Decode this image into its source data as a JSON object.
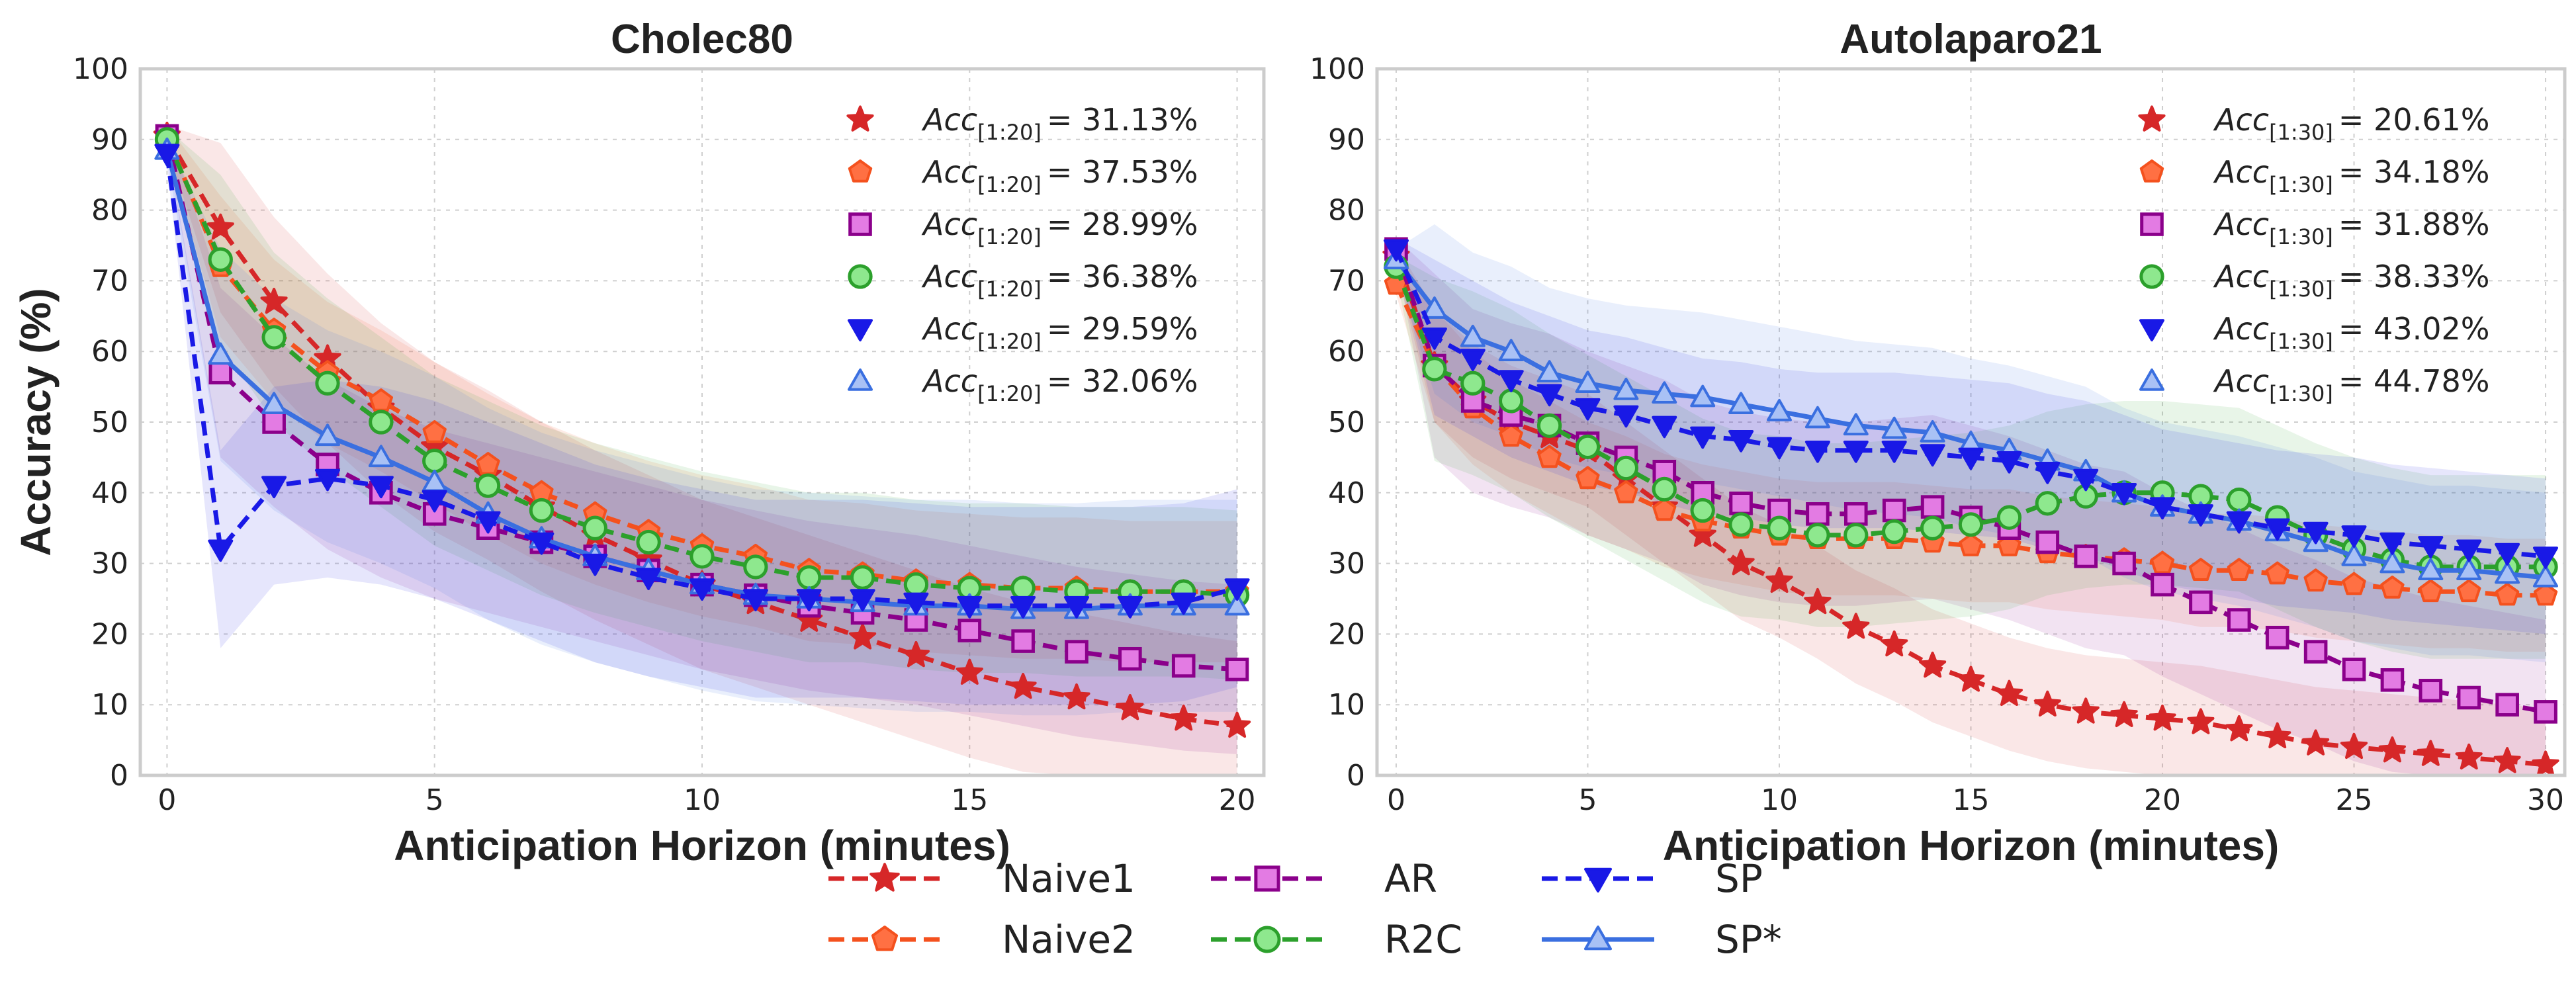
{
  "legend_order": [
    "Naive1",
    "AR",
    "SP",
    "Naive2",
    "R2C",
    "SP*"
  ],
  "style": {
    "Naive1": {
      "color": "#d62728",
      "fill": "#d62728",
      "marker": "star",
      "dash": true
    },
    "Naive2": {
      "color": "#f4511e",
      "fill": "#ff7043",
      "marker": "pentagon",
      "dash": true
    },
    "AR": {
      "color": "#8b008b",
      "fill": "#e37be3",
      "marker": "square",
      "dash": true
    },
    "R2C": {
      "color": "#2ca02c",
      "fill": "#8ee88e",
      "marker": "circle",
      "dash": true
    },
    "SP": {
      "color": "#1919e6",
      "fill": "#1919e6",
      "marker": "tri-down",
      "dash": true
    },
    "SP*": {
      "color": "#3a6fe0",
      "fill": "#a9c1f5",
      "marker": "tri-up",
      "dash": false
    }
  },
  "chart_data": [
    {
      "type": "line",
      "title": "Cholec80",
      "xlabel": "Anticipation Horizon (minutes)",
      "ylabel": "Accuracy (%)",
      "xlim": [
        -0.5,
        20.5
      ],
      "ylim": [
        0,
        100
      ],
      "xticks": [
        0,
        5,
        10,
        15,
        20
      ],
      "yticks": [
        0,
        10,
        20,
        30,
        40,
        50,
        60,
        70,
        80,
        90,
        100
      ],
      "x": [
        0,
        1,
        2,
        3,
        4,
        5,
        6,
        7,
        8,
        9,
        10,
        11,
        12,
        13,
        14,
        15,
        16,
        17,
        18,
        19,
        20
      ],
      "annotations": [
        {
          "series": "Naive1",
          "label": "Acc",
          "sub": "[1:20]",
          "value": "= 31.13%"
        },
        {
          "series": "Naive2",
          "label": "Acc",
          "sub": "[1:20]",
          "value": "= 37.53%"
        },
        {
          "series": "AR",
          "label": "Acc",
          "sub": "[1:20]",
          "value": "= 28.99%"
        },
        {
          "series": "R2C",
          "label": "Acc",
          "sub": "[1:20]",
          "value": "= 36.38%"
        },
        {
          "series": "SP",
          "label": "Acc",
          "sub": "[1:20]",
          "value": "= 29.59%"
        },
        {
          "series": "SP*",
          "label": "Acc",
          "sub": "[1:20]",
          "value": "= 32.06%"
        }
      ],
      "series": [
        {
          "name": "Naive1",
          "values": [
            90.5,
            77.5,
            67,
            59,
            52,
            46.5,
            42.5,
            38,
            34,
            30.5,
            27,
            24.5,
            22,
            19.5,
            17,
            14.5,
            12.5,
            11,
            9.5,
            8,
            7
          ],
          "band": 12
        },
        {
          "name": "Naive2",
          "values": [
            90.5,
            72,
            63,
            57,
            53,
            48.5,
            44,
            40,
            37,
            34.5,
            32.5,
            31,
            29,
            28.5,
            27.5,
            27,
            26.5,
            26.5,
            26,
            26,
            26
          ],
          "band": 10
        },
        {
          "name": "AR",
          "values": [
            90.5,
            57,
            50,
            44,
            40,
            37,
            35,
            33,
            31,
            29,
            27,
            25.5,
            24,
            23,
            22,
            20.5,
            19,
            17.5,
            16.5,
            15.5,
            15
          ],
          "band": 12
        },
        {
          "name": "R2C",
          "values": [
            90,
            73,
            62,
            55.5,
            50,
            44.5,
            41,
            37.5,
            35,
            33,
            31,
            29.5,
            28,
            28,
            27,
            26.5,
            26.5,
            26,
            26,
            26,
            25.5
          ],
          "band": 12
        },
        {
          "name": "SP",
          "values": [
            88,
            32,
            41,
            42,
            41,
            39,
            36,
            33,
            30,
            28,
            26.5,
            25,
            25,
            25,
            24.5,
            24,
            24,
            24,
            24,
            24.5,
            26.5
          ],
          "band": 14
        },
        {
          "name": "SP*",
          "values": [
            88.5,
            59.5,
            52.5,
            48,
            45,
            41.5,
            37,
            33.5,
            31,
            29,
            27,
            25.5,
            25,
            24.5,
            24,
            24,
            23.5,
            23.5,
            24,
            24,
            24
          ],
          "band": 15
        }
      ]
    },
    {
      "type": "line",
      "title": "Autolaparo21",
      "xlabel": "Anticipation Horizon (minutes)",
      "ylabel": "",
      "xlim": [
        -0.5,
        30.5
      ],
      "ylim": [
        0,
        100
      ],
      "xticks": [
        0,
        5,
        10,
        15,
        20,
        25,
        30
      ],
      "yticks": [
        0,
        10,
        20,
        30,
        40,
        50,
        60,
        70,
        80,
        90,
        100
      ],
      "x": [
        0,
        1,
        2,
        3,
        4,
        5,
        6,
        7,
        8,
        9,
        10,
        11,
        12,
        13,
        14,
        15,
        16,
        17,
        18,
        19,
        20,
        21,
        22,
        23,
        24,
        25,
        26,
        27,
        28,
        29,
        30
      ],
      "annotations": [
        {
          "series": "Naive1",
          "label": "Acc",
          "sub": "[1:30]",
          "value": "= 20.61%"
        },
        {
          "series": "Naive2",
          "label": "Acc",
          "sub": "[1:30]",
          "value": "= 34.18%"
        },
        {
          "series": "AR",
          "label": "Acc",
          "sub": "[1:30]",
          "value": "= 31.88%"
        },
        {
          "series": "R2C",
          "label": "Acc",
          "sub": "[1:30]",
          "value": "= 38.33%"
        },
        {
          "series": "SP",
          "label": "Acc",
          "sub": "[1:30]",
          "value": "= 43.02%"
        },
        {
          "series": "SP*",
          "label": "Acc",
          "sub": "[1:30]",
          "value": "= 44.78%"
        }
      ],
      "series": [
        {
          "name": "Naive1",
          "values": [
            73.5,
            58,
            53,
            50,
            48,
            46,
            42,
            38,
            34,
            30,
            27.5,
            24.5,
            21,
            18.5,
            15.5,
            13.5,
            11.5,
            10,
            9,
            8.5,
            8,
            7.5,
            6.5,
            5.5,
            4.5,
            4,
            3.5,
            3,
            2.5,
            2,
            1.5
          ],
          "band": 8
        },
        {
          "name": "Naive2",
          "values": [
            69.5,
            58,
            52,
            48,
            45,
            42,
            40,
            37.5,
            36,
            35,
            34,
            33.5,
            33.5,
            33.5,
            33,
            32.5,
            32.5,
            31.5,
            31,
            30.5,
            30,
            29,
            29,
            28.5,
            27.5,
            27,
            26.5,
            26,
            26,
            25.5,
            25.5
          ],
          "band": 8
        },
        {
          "name": "AR",
          "values": [
            74.5,
            58,
            53,
            51,
            49.5,
            47,
            45,
            43,
            40,
            38.5,
            37.5,
            37,
            37,
            37.5,
            38,
            36.5,
            35,
            33,
            31,
            30,
            27,
            24.5,
            22,
            19.5,
            17.5,
            15,
            13.5,
            12,
            11,
            10,
            9
          ],
          "band": 13
        },
        {
          "name": "R2C",
          "values": [
            72,
            57.5,
            55.5,
            53,
            49.5,
            46.5,
            43.5,
            40.5,
            37.5,
            35.5,
            35,
            34,
            34,
            34.5,
            35,
            35.5,
            36.5,
            38.5,
            39.5,
            40,
            40,
            39.5,
            39,
            36.5,
            34,
            32,
            30.5,
            29.5,
            29.5,
            29.5,
            29.5
          ],
          "band": 13
        },
        {
          "name": "SP",
          "values": [
            74.5,
            62,
            59,
            56,
            54,
            52,
            51,
            49.5,
            48,
            47.5,
            46.5,
            46,
            46,
            46,
            45.5,
            45,
            44.5,
            43,
            42,
            40,
            38,
            37,
            36,
            35,
            34.5,
            34,
            33,
            32.5,
            32,
            31.5,
            31
          ],
          "band": 11
        },
        {
          "name": "SP*",
          "values": [
            73,
            66,
            62,
            60,
            57,
            55.5,
            54.5,
            54,
            53.5,
            52.5,
            51.5,
            50.5,
            49.5,
            49,
            48.5,
            47,
            46,
            44.5,
            43,
            40,
            38,
            37,
            36,
            34.5,
            33,
            31,
            30,
            29,
            29,
            28.5,
            28
          ],
          "band": 12
        }
      ]
    }
  ]
}
